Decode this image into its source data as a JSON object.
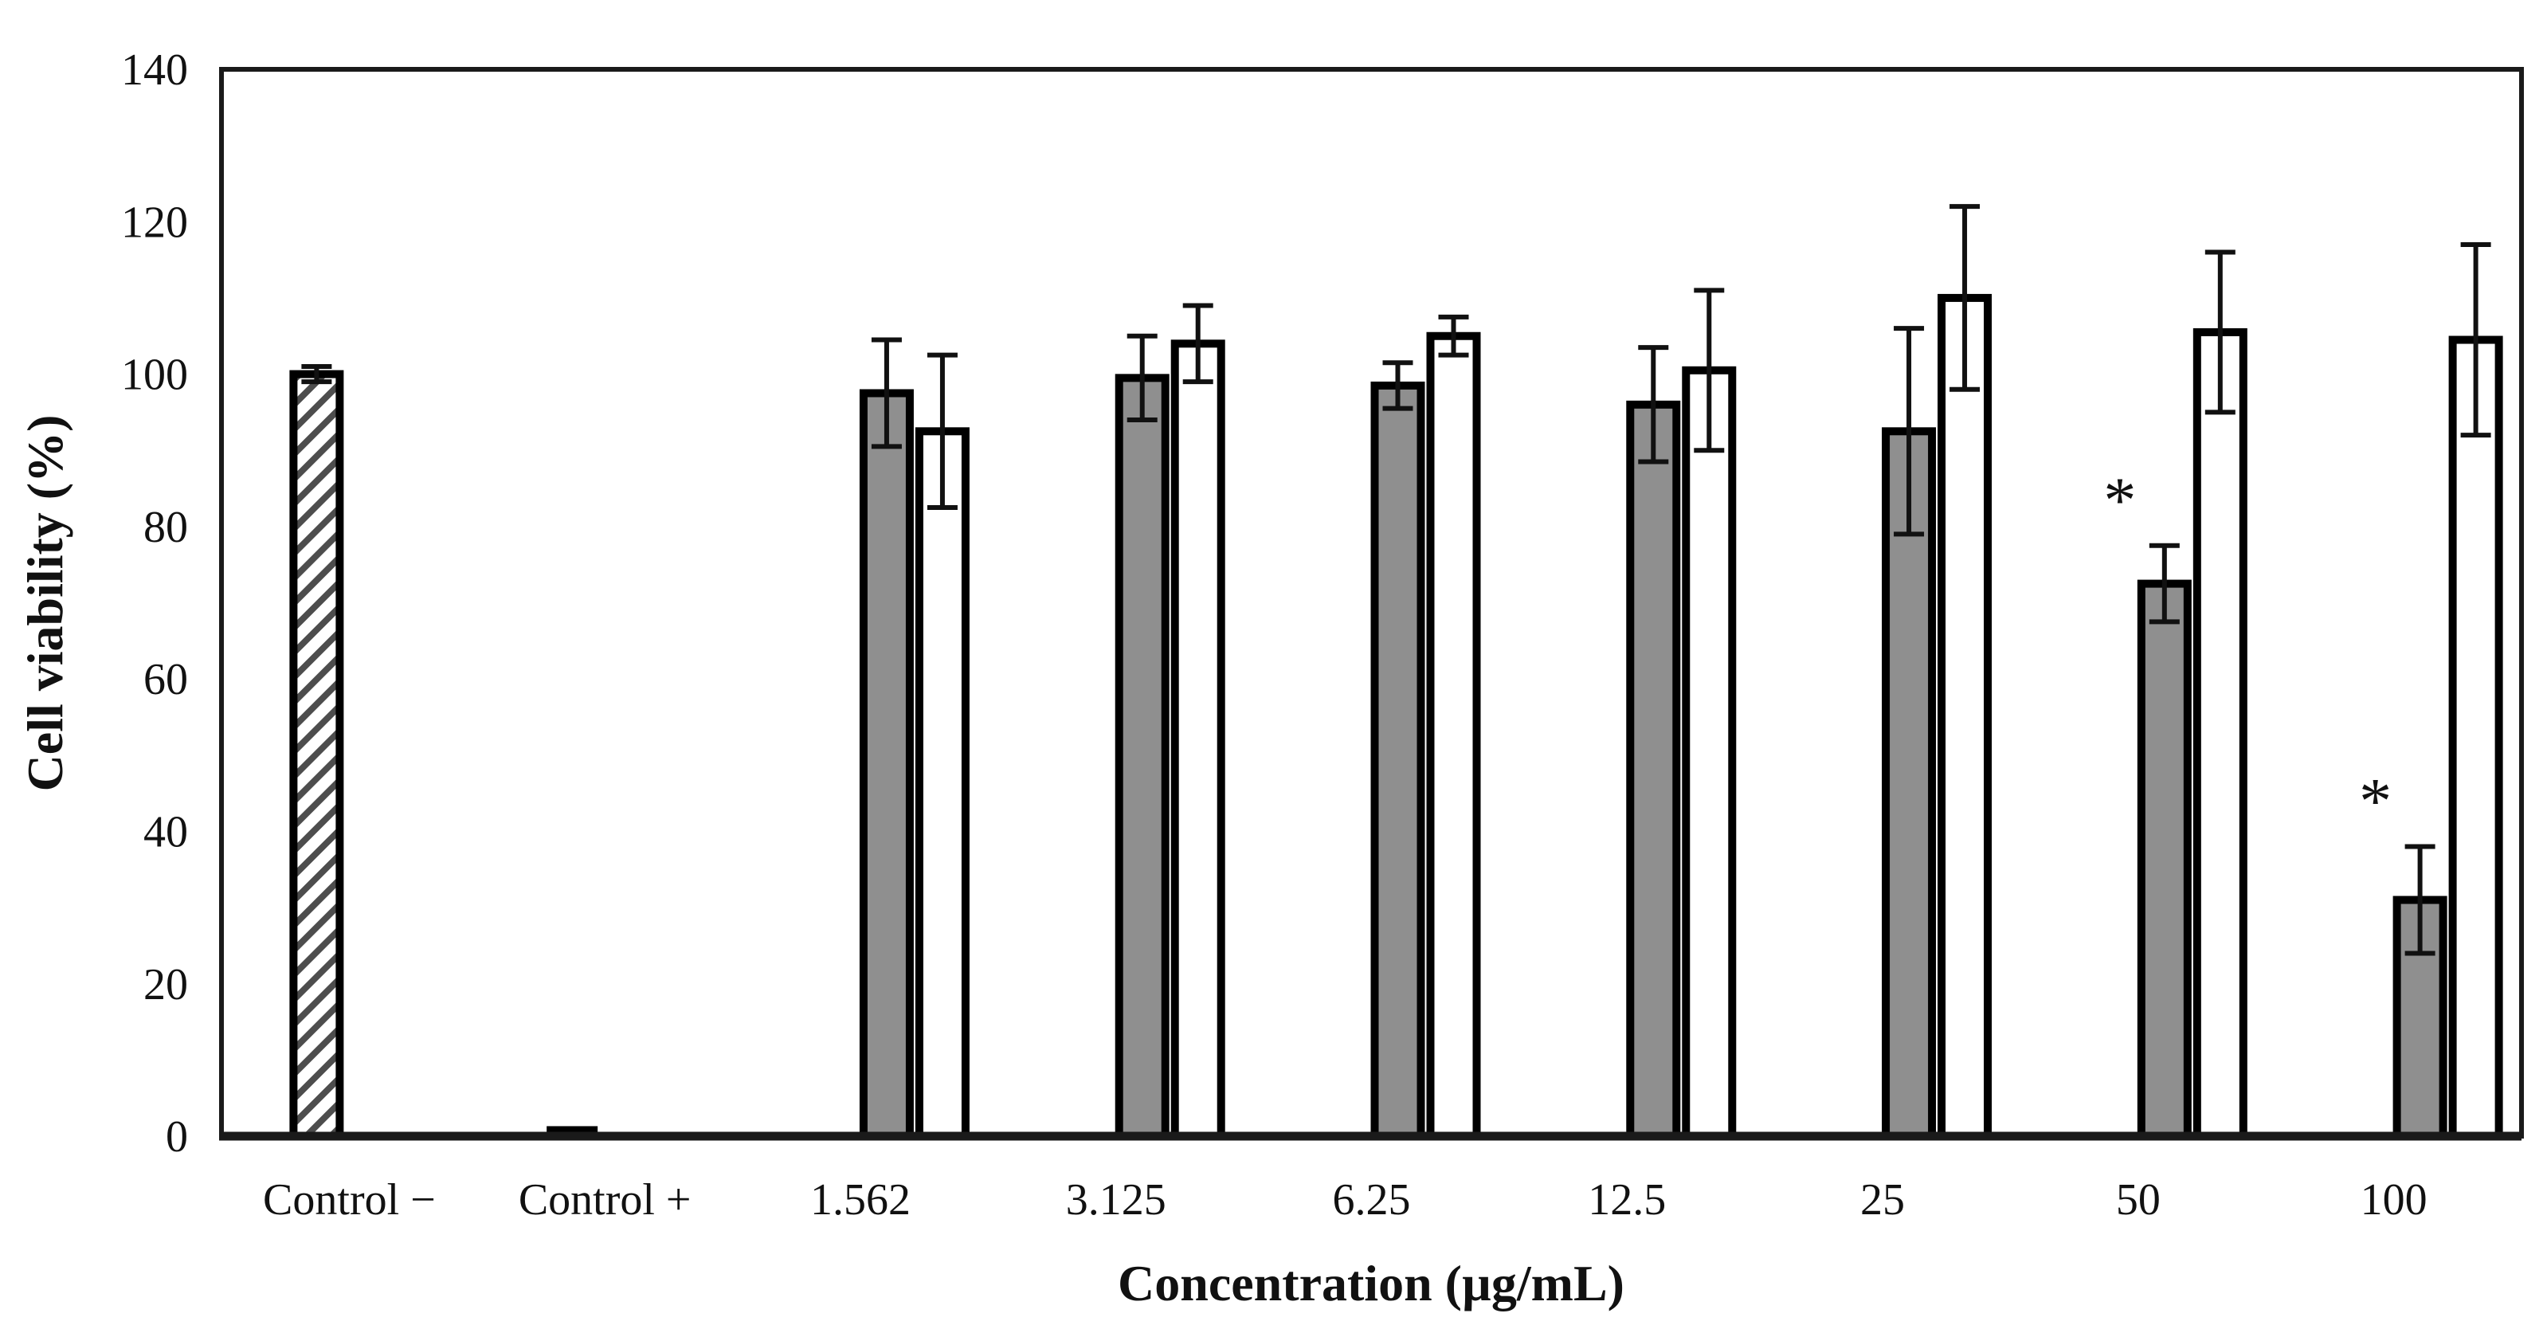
{
  "chart_data": {
    "type": "bar",
    "title": "",
    "ylabel": "Cell viability (%)",
    "xlabel": "Concentration (µg/mL)",
    "ylim": [
      0,
      140
    ],
    "ytick_step": 20,
    "grid": false,
    "legend": "none",
    "frame": "full-box",
    "categories": [
      "Control −",
      "Control +",
      "1.562",
      "3.125",
      "6.25",
      "12.5",
      "25",
      "50",
      "100"
    ],
    "series": [
      {
        "name": "gray-filled-bars",
        "fill": "#8f8f8f",
        "values": [
          100,
          1,
          97.5,
          99.5,
          98.5,
          96,
          92.5,
          72.5,
          31
        ],
        "errors": [
          1,
          0,
          7,
          5.5,
          3,
          7.5,
          13.5,
          5,
          7
        ],
        "bar_styles": [
          "hatched",
          "solid-black",
          "gray",
          "gray",
          "gray",
          "gray",
          "gray",
          "gray",
          "gray"
        ]
      },
      {
        "name": "white-open-bars",
        "fill": "#ffffff",
        "values": [
          null,
          null,
          92.5,
          104,
          105,
          100.5,
          110,
          105.5,
          104.5
        ],
        "errors": [
          null,
          null,
          10,
          5,
          2.5,
          10.5,
          12,
          10.5,
          12.5
        ],
        "bar_styles": [
          "none",
          "none",
          "white",
          "white",
          "white",
          "white",
          "white",
          "white",
          "white"
        ]
      }
    ],
    "significance_markers": [
      {
        "category": "50",
        "series": 0,
        "symbol": "*"
      },
      {
        "category": "100",
        "series": 0,
        "symbol": "*"
      }
    ],
    "colors": {
      "bar_border": "#000000",
      "gray_fill": "#8f8f8f",
      "hatch_stripe": "#4d4d4d",
      "axis_line": "#1a1a1a",
      "text": "#111111",
      "background": "#ffffff"
    }
  }
}
